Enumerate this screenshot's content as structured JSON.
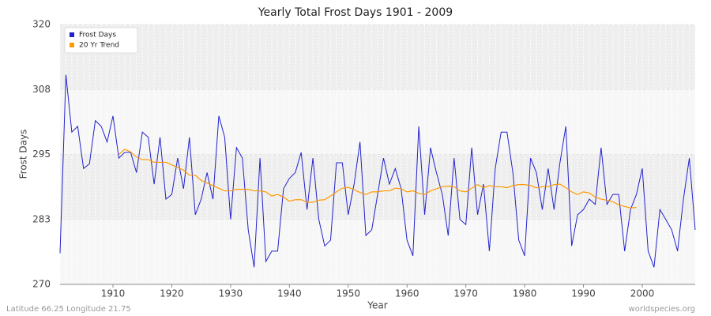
{
  "chart_data": {
    "type": "line",
    "title": "Yearly Total Frost Days 1901 - 2009",
    "x_label": "Year",
    "y_label": "Frost Days",
    "footer_left": "Latitude 66.25 Longitude 21.75",
    "footer_right": "worldspecies.org",
    "legend": "top-left",
    "grid": true,
    "xlim": [
      1901,
      2009
    ],
    "xticks": [
      1910,
      1920,
      1930,
      1940,
      1950,
      1960,
      1970,
      1980,
      1990,
      2000
    ],
    "ylim": [
      270,
      320
    ],
    "yticks": [
      270,
      {
        "value": 282.5,
        "label": "283"
      },
      295,
      {
        "value": 307.5,
        "label": "308"
      },
      320
    ],
    "x": [
      1901,
      1902,
      1903,
      1904,
      1905,
      1906,
      1907,
      1908,
      1909,
      1910,
      1911,
      1912,
      1913,
      1914,
      1915,
      1916,
      1917,
      1918,
      1919,
      1920,
      1921,
      1922,
      1923,
      1924,
      1925,
      1926,
      1927,
      1928,
      1929,
      1930,
      1931,
      1932,
      1933,
      1934,
      1935,
      1936,
      1937,
      1938,
      1939,
      1940,
      1941,
      1942,
      1943,
      1944,
      1945,
      1946,
      1947,
      1948,
      1949,
      1950,
      1951,
      1952,
      1953,
      1954,
      1955,
      1956,
      1957,
      1958,
      1959,
      1960,
      1961,
      1962,
      1963,
      1964,
      1965,
      1966,
      1967,
      1968,
      1969,
      1970,
      1971,
      1972,
      1973,
      1974,
      1975,
      1976,
      1977,
      1978,
      1979,
      1980,
      1981,
      1982,
      1983,
      1984,
      1985,
      1986,
      1987,
      1988,
      1989,
      1990,
      1991,
      1992,
      1993,
      1994,
      1995,
      1996,
      1997,
      1998,
      1999,
      2000,
      2001,
      2002,
      2003,
      2004,
      2005,
      2006,
      2007,
      2008,
      2009
    ],
    "series": [
      {
        "name": "Frost Days",
        "color": "#2222cc",
        "values": [
          276.0,
          310.3,
          299.3,
          300.4,
          292.3,
          293.2,
          301.5,
          300.4,
          297.4,
          302.4,
          294.3,
          295.4,
          295.4,
          291.5,
          299.3,
          298.3,
          289.3,
          298.3,
          286.4,
          287.3,
          294.3,
          288.4,
          298.3,
          283.4,
          286.4,
          291.5,
          286.4,
          302.4,
          298.3,
          282.5,
          296.3,
          294.3,
          280.5,
          273.3,
          294.3,
          274.4,
          276.4,
          276.4,
          288.4,
          290.4,
          291.5,
          295.4,
          284.4,
          294.3,
          282.5,
          277.4,
          278.5,
          293.4,
          293.4,
          283.4,
          289.3,
          297.4,
          279.4,
          280.5,
          287.3,
          294.3,
          289.3,
          292.3,
          288.4,
          278.5,
          275.5,
          300.4,
          283.4,
          296.3,
          291.5,
          287.3,
          279.4,
          294.3,
          282.5,
          281.5,
          296.3,
          283.4,
          289.3,
          276.4,
          292.3,
          299.3,
          299.3,
          291.5,
          278.5,
          275.5,
          294.3,
          291.5,
          284.4,
          292.3,
          284.4,
          293.4,
          300.4,
          277.4,
          283.4,
          284.4,
          286.4,
          285.4,
          296.3,
          285.4,
          287.3,
          287.3,
          276.4,
          284.4,
          287.3,
          292.3,
          276.4,
          273.3,
          284.4,
          282.5,
          280.5,
          276.4,
          286.4,
          294.3,
          280.5
        ]
      },
      {
        "name": "20 Yr Trend",
        "color": "#ff9900",
        "values": [
          null,
          null,
          null,
          null,
          null,
          null,
          null,
          null,
          null,
          null,
          295,
          296,
          295.5,
          294.5,
          294,
          294,
          293.5,
          293.5,
          293.5,
          293,
          292.5,
          292,
          291,
          291,
          290,
          289.5,
          289,
          288.5,
          288,
          288,
          288.3,
          288.3,
          288.3,
          288,
          288,
          287.8,
          287,
          287.3,
          286.8,
          286,
          286.3,
          286.3,
          285.8,
          285.8,
          286.2,
          286.3,
          287,
          287.8,
          288.5,
          288.7,
          288.2,
          287.7,
          287.3,
          287.8,
          287.8,
          288,
          288,
          288.5,
          288.4,
          287.8,
          288,
          287.5,
          287.3,
          288,
          288.4,
          288.8,
          288.9,
          288.8,
          288,
          287.8,
          288.5,
          289.2,
          288.6,
          289,
          288.8,
          288.8,
          288.6,
          289,
          289.2,
          289.2,
          289,
          288.6,
          288.8,
          288.8,
          289.2,
          289.3,
          288.6,
          287.8,
          287.3,
          287.8,
          287.6,
          286.8,
          286.4,
          286.2,
          285.9,
          285.3,
          285,
          284.7,
          284.8,
          null,
          null,
          null,
          null,
          null,
          null,
          null,
          null,
          null,
          null
        ]
      }
    ]
  }
}
